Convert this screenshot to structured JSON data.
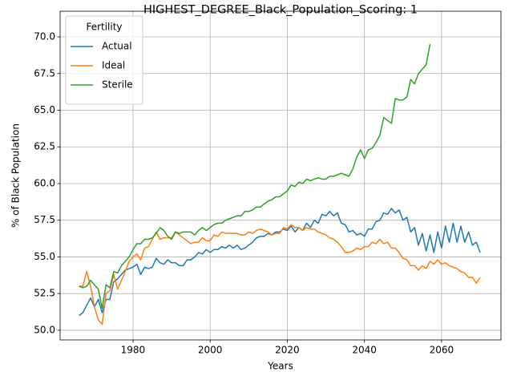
{
  "chart_data": {
    "type": "line",
    "title": "HIGHEST_DEGREE_Black_Population_Scoring: 1",
    "xlabel": "Years",
    "ylabel": "% of Black Population",
    "legend_title": "Fertility",
    "legend_loc": "upper left",
    "grid": true,
    "xlim": [
      1961.1,
      2075.4
    ],
    "ylim": [
      49.34,
      71.75
    ],
    "xticks": [
      1980,
      2000,
      2020,
      2040,
      2060
    ],
    "yticks": [
      {
        "value": 50,
        "label": "50.0"
      },
      {
        "value": 52.5,
        "label": "52.5"
      },
      {
        "value": 55,
        "label": "55.0"
      },
      {
        "value": 57.5,
        "label": "57.5"
      },
      {
        "value": 60,
        "label": "60.0"
      },
      {
        "value": 62.5,
        "label": "62.5"
      },
      {
        "value": 65,
        "label": "65.0"
      },
      {
        "value": 67.5,
        "label": "67.5"
      },
      {
        "value": 70,
        "label": "70.0"
      }
    ],
    "x": [
      1966,
      1967,
      1968,
      1969,
      1970,
      1971,
      1972,
      1973,
      1974,
      1975,
      1976,
      1977,
      1978,
      1979,
      1980,
      1981,
      1982,
      1983,
      1984,
      1985,
      1986,
      1987,
      1988,
      1989,
      1990,
      1991,
      1992,
      1993,
      1994,
      1995,
      1996,
      1997,
      1998,
      1999,
      2000,
      2001,
      2002,
      2003,
      2004,
      2005,
      2006,
      2007,
      2008,
      2009,
      2010,
      2011,
      2012,
      2013,
      2014,
      2015,
      2016,
      2017,
      2018,
      2019,
      2020,
      2021,
      2022,
      2023,
      2024,
      2025,
      2026,
      2027,
      2028,
      2029,
      2030,
      2031,
      2032,
      2033,
      2034,
      2035,
      2036,
      2037,
      2038,
      2039,
      2040,
      2041,
      2042,
      2043,
      2044,
      2045,
      2046,
      2047,
      2048,
      2049,
      2050,
      2051,
      2052,
      2053,
      2054,
      2055,
      2056,
      2057,
      2058,
      2059,
      2060,
      2061,
      2062,
      2063,
      2064,
      2065,
      2066,
      2067,
      2068,
      2069,
      2070
    ],
    "series": [
      {
        "name": "Actual",
        "color": "#1f77b4",
        "values": [
          51.0,
          51.2,
          51.7,
          52.2,
          51.6,
          52.1,
          51.2,
          52.1,
          52.1,
          53.3,
          53.5,
          53.8,
          54.1,
          54.2,
          54.3,
          54.5,
          53.8,
          54.3,
          54.2,
          54.3,
          54.9,
          54.6,
          54.5,
          54.8,
          54.6,
          54.6,
          54.4,
          54.4,
          54.8,
          54.8,
          55.0,
          55.3,
          55.2,
          55.5,
          55.3,
          55.5,
          55.5,
          55.7,
          55.6,
          55.8,
          55.6,
          55.8,
          55.5,
          55.6,
          55.8,
          56.0,
          56.3,
          56.4,
          56.4,
          56.6,
          56.5,
          56.7,
          56.7,
          56.9,
          56.8,
          57.1,
          56.7,
          57.0,
          56.8,
          57.3,
          57.0,
          57.5,
          57.3,
          57.9,
          57.8,
          58.1,
          57.8,
          58.0,
          57.3,
          57.2,
          56.7,
          56.8,
          56.5,
          56.6,
          56.4,
          56.9,
          56.9,
          57.4,
          57.5,
          58.0,
          57.9,
          58.3,
          58.0,
          58.2,
          57.5,
          57.7,
          56.7,
          57.0,
          55.8,
          56.6,
          55.4,
          56.5,
          55.3,
          56.7,
          55.6,
          57.1,
          56.0,
          57.3,
          56.0,
          57.1,
          56.0,
          56.7,
          55.8,
          56.0,
          55.3
        ]
      },
      {
        "name": "Ideal",
        "color": "#ff7f0e",
        "values": [
          53.0,
          53.0,
          54.0,
          53.0,
          51.6,
          50.7,
          50.4,
          52.5,
          52.7,
          53.8,
          52.8,
          53.4,
          54.0,
          54.7,
          55.0,
          55.2,
          54.8,
          55.6,
          55.7,
          56.2,
          56.7,
          56.2,
          56.3,
          56.3,
          56.3,
          56.7,
          56.5,
          56.3,
          56.1,
          55.9,
          56.0,
          56.0,
          56.3,
          56.1,
          56.1,
          56.5,
          56.4,
          56.7,
          56.6,
          56.6,
          56.6,
          56.6,
          56.5,
          56.5,
          56.7,
          56.6,
          56.8,
          56.9,
          56.8,
          56.7,
          56.5,
          56.6,
          56.6,
          57.0,
          56.9,
          57.2,
          57.0,
          57.0,
          56.8,
          57.0,
          56.9,
          56.9,
          56.7,
          56.6,
          56.5,
          56.3,
          56.2,
          56.0,
          55.7,
          55.3,
          55.3,
          55.4,
          55.6,
          55.5,
          55.7,
          55.7,
          56.0,
          55.9,
          56.2,
          55.9,
          56.0,
          55.6,
          55.6,
          55.3,
          54.9,
          54.8,
          54.4,
          54.4,
          54.1,
          54.4,
          54.2,
          54.7,
          54.5,
          54.8,
          54.5,
          54.6,
          54.4,
          54.3,
          54.2,
          54.0,
          53.9,
          53.6,
          53.6,
          53.2,
          53.6
        ]
      },
      {
        "name": "Sterile",
        "color": "#2ca02c",
        "values": [
          53.0,
          52.9,
          53.0,
          53.4,
          53.1,
          52.8,
          51.5,
          53.1,
          52.9,
          54.0,
          53.9,
          54.4,
          54.7,
          55.0,
          55.5,
          55.9,
          55.9,
          56.2,
          56.2,
          56.3,
          56.6,
          57.0,
          56.8,
          56.4,
          56.2,
          56.7,
          56.6,
          56.7,
          56.7,
          56.7,
          56.5,
          56.8,
          57.0,
          56.8,
          57.0,
          57.2,
          57.3,
          57.3,
          57.5,
          57.6,
          57.7,
          57.8,
          57.8,
          58.1,
          58.1,
          58.2,
          58.4,
          58.4,
          58.6,
          58.8,
          58.9,
          59.1,
          59.1,
          59.3,
          59.5,
          59.9,
          59.8,
          60.1,
          60.0,
          60.3,
          60.2,
          60.3,
          60.4,
          60.3,
          60.3,
          60.5,
          60.5,
          60.6,
          60.7,
          60.6,
          60.5,
          61.0,
          61.8,
          62.3,
          61.7,
          62.3,
          62.4,
          62.8,
          63.3,
          64.5,
          64.3,
          64.1,
          65.8,
          65.7,
          65.7,
          65.9,
          67.1,
          66.8,
          67.5,
          67.8,
          68.1,
          69.5,
          null,
          null,
          null,
          null,
          null,
          null,
          null,
          null,
          null,
          null,
          null,
          null,
          null
        ]
      }
    ]
  }
}
